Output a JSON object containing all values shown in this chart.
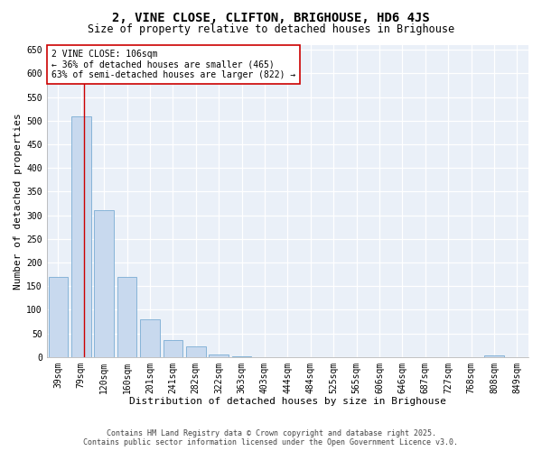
{
  "title": "2, VINE CLOSE, CLIFTON, BRIGHOUSE, HD6 4JS",
  "subtitle": "Size of property relative to detached houses in Brighouse",
  "xlabel": "Distribution of detached houses by size in Brighouse",
  "ylabel": "Number of detached properties",
  "categories": [
    "39sqm",
    "79sqm",
    "120sqm",
    "160sqm",
    "201sqm",
    "241sqm",
    "282sqm",
    "322sqm",
    "363sqm",
    "403sqm",
    "444sqm",
    "484sqm",
    "525sqm",
    "565sqm",
    "606sqm",
    "646sqm",
    "687sqm",
    "727sqm",
    "768sqm",
    "808sqm",
    "849sqm"
  ],
  "values": [
    170,
    510,
    310,
    170,
    80,
    35,
    22,
    5,
    1,
    0,
    0,
    0,
    0,
    0,
    0,
    0,
    0,
    0,
    0,
    4,
    0
  ],
  "bar_color": "#c8d9ee",
  "bar_edge_color": "#7aadd4",
  "vline_color": "#cc0000",
  "annotation_text": "2 VINE CLOSE: 106sqm\n← 36% of detached houses are smaller (465)\n63% of semi-detached houses are larger (822) →",
  "annotation_box_color": "#ffffff",
  "annotation_box_edge": "#cc0000",
  "ylim": [
    0,
    660
  ],
  "yticks": [
    0,
    50,
    100,
    150,
    200,
    250,
    300,
    350,
    400,
    450,
    500,
    550,
    600,
    650
  ],
  "bg_color": "#eaf0f8",
  "plot_bg_color": "#eaf0f8",
  "footer_line1": "Contains HM Land Registry data © Crown copyright and database right 2025.",
  "footer_line2": "Contains public sector information licensed under the Open Government Licence v3.0.",
  "title_fontsize": 10,
  "subtitle_fontsize": 8.5,
  "axis_label_fontsize": 8,
  "tick_fontsize": 7,
  "annotation_fontsize": 7,
  "footer_fontsize": 6
}
